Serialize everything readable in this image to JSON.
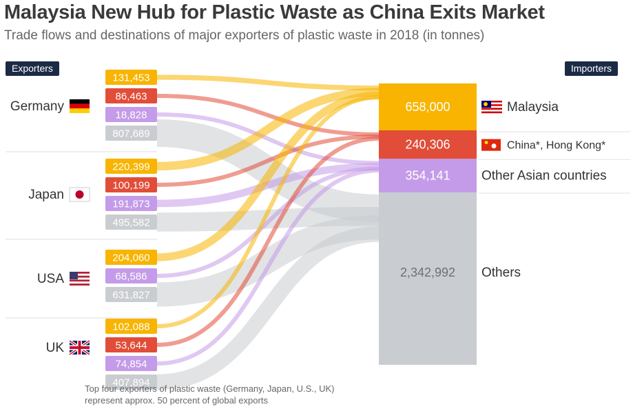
{
  "header": {
    "title": "Malaysia New Hub for Plastic Waste as China Exits Market",
    "subtitle": "Trade flows and destinations of major exporters of plastic waste in 2018 (in tonnes)"
  },
  "tags": {
    "exporters": "Exporters",
    "importers": "Importers"
  },
  "footnote": {
    "line1": "Top four exporters of plastic waste (Germany, Japan, U.S., UK)",
    "line2": "represent approx. 50 percent of global exports"
  },
  "colors": {
    "Malaysia": "#f8b400",
    "China*, Hong Kong*": "#e14d38",
    "Other Asian countries": "#c49be8",
    "Others": "#c9ccd0"
  },
  "chart_data": {
    "type": "sankey",
    "title": "Malaysia New Hub for Plastic Waste as China Exits Market",
    "subtitle": "Trade flows and destinations of major exporters of plastic waste in 2018 (in tonnes)",
    "unit": "tonnes",
    "exporters": [
      {
        "name": "Germany",
        "flag": "germany-flag",
        "flows": [
          {
            "to": "Malaysia",
            "value": 131453,
            "label": "131,453"
          },
          {
            "to": "China*, Hong Kong*",
            "value": 86463,
            "label": "86,463"
          },
          {
            "to": "Other Asian countries",
            "value": 18828,
            "label": "18,828"
          },
          {
            "to": "Others",
            "value": 807689,
            "label": "807,689"
          }
        ]
      },
      {
        "name": "Japan",
        "flag": "japan-flag",
        "flows": [
          {
            "to": "Malaysia",
            "value": 220399,
            "label": "220,399"
          },
          {
            "to": "China*, Hong Kong*",
            "value": 100199,
            "label": "100,199"
          },
          {
            "to": "Other Asian countries",
            "value": 191873,
            "label": "191,873"
          },
          {
            "to": "Others",
            "value": 495582,
            "label": "495,582"
          }
        ]
      },
      {
        "name": "USA",
        "flag": "usa-flag",
        "flows": [
          {
            "to": "Malaysia",
            "value": 204060,
            "label": "204,060"
          },
          {
            "to": "Other Asian countries",
            "value": 68586,
            "label": "68,586"
          },
          {
            "to": "Others",
            "value": 631827,
            "label": "631,827"
          }
        ]
      },
      {
        "name": "UK",
        "flag": "uk-flag",
        "flows": [
          {
            "to": "Malaysia",
            "value": 102088,
            "label": "102,088"
          },
          {
            "to": "China*, Hong Kong*",
            "value": 53644,
            "label": "53,644"
          },
          {
            "to": "Other Asian countries",
            "value": 74854,
            "label": "74,854"
          },
          {
            "to": "Others",
            "value": 407894,
            "label": "407,894"
          }
        ]
      }
    ],
    "importers": [
      {
        "name": "Malaysia",
        "total": 658000,
        "label": "658,000",
        "flag": "malaysia-flag"
      },
      {
        "name": "China*, Hong Kong*",
        "total": 240306,
        "label": "240,306",
        "flag": "china-flag"
      },
      {
        "name": "Other Asian countries",
        "total": 354141,
        "label": "354,141"
      },
      {
        "name": "Others",
        "total": 2342992,
        "label": "2,342,992"
      }
    ]
  }
}
